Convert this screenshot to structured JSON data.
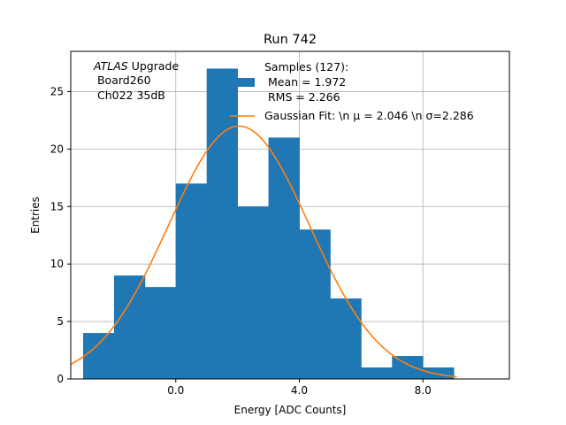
{
  "chart_data": {
    "type": "bar",
    "title": "Run 742",
    "xlabel": "Energy [ADC Counts]",
    "ylabel": "Entries",
    "xlim": [
      -3.4,
      10.8
    ],
    "ylim": [
      0,
      28.5
    ],
    "xticks": [
      0.0,
      4.0,
      8.0
    ],
    "xtick_labels": [
      "0.0",
      "4.0",
      "8.0"
    ],
    "yticks": [
      0,
      5,
      10,
      15,
      20,
      25
    ],
    "ytick_labels": [
      "0",
      "5",
      "10",
      "15",
      "20",
      "25"
    ],
    "grid": true,
    "bin_edges": [
      -3.0,
      -2.0,
      -1.0,
      0.0,
      1.0,
      2.0,
      3.0,
      4.0,
      5.0,
      6.0,
      7.0,
      8.0,
      9.0
    ],
    "counts": [
      4,
      9,
      8,
      17,
      27,
      15,
      21,
      13,
      7,
      1,
      2,
      1
    ],
    "bar_color": "#1f77b4",
    "fit_color": "#ff7f0e",
    "fit": {
      "mu": 2.046,
      "sigma": 2.286,
      "amplitude": 22.0,
      "x_range": [
        -3.4,
        9.1
      ]
    },
    "annotation": {
      "italic": "ATLAS",
      "line1_rest": " Upgrade",
      "line2": " Board260",
      "line3": " Ch022 35dB"
    },
    "legend": {
      "placement": "top-right",
      "hist_label_lines": [
        "Samples (127):",
        " Mean = 1.972",
        " RMS = 2.266"
      ],
      "fit_label": "Gaussian Fit: \\n μ = 2.046 \\n σ=2.286"
    }
  }
}
